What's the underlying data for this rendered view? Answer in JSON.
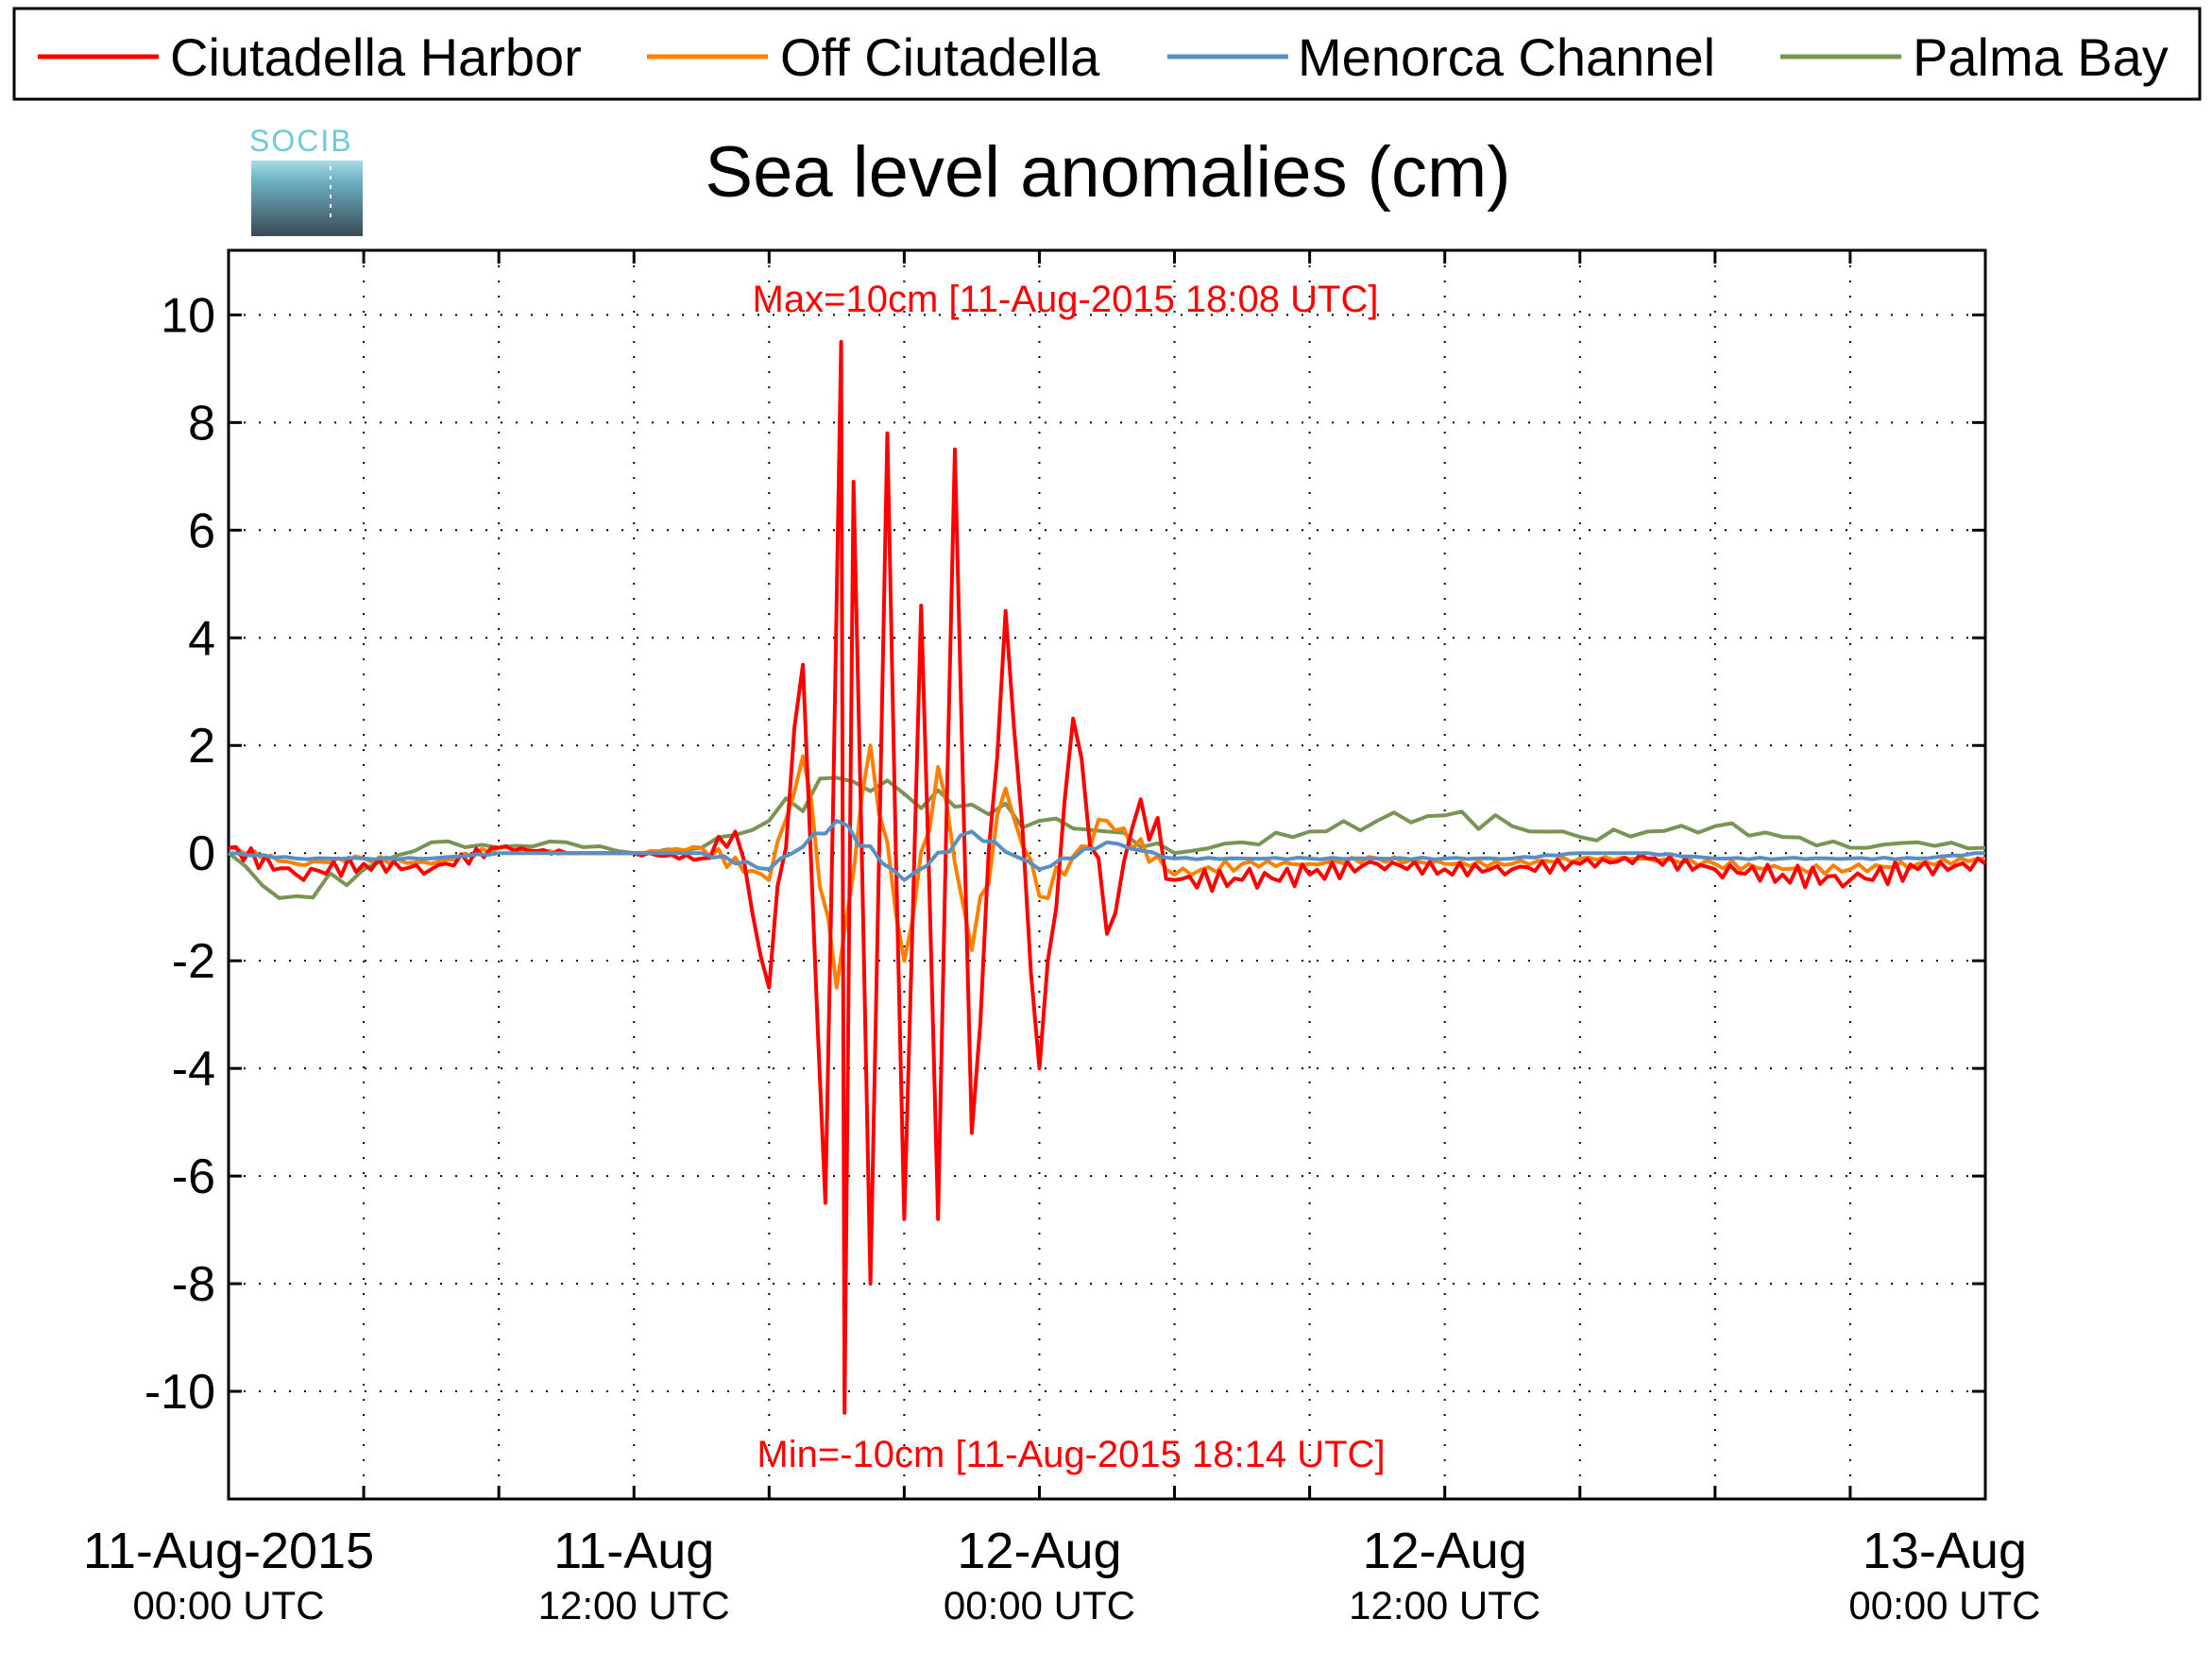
{
  "chart_data": {
    "type": "line",
    "title": "Sea level anomalies (cm)",
    "xlabel": "",
    "ylabel": "",
    "ylim": [
      -12,
      11.2
    ],
    "xlim": [
      "2015-08-11T00:00Z",
      "2015-08-13T04:00Z"
    ],
    "y_ticks": [
      "10",
      "8",
      "6",
      "4",
      "2",
      "0",
      "-2",
      "-4",
      "-6",
      "-8",
      "-10"
    ],
    "y_tick_values": [
      10,
      8,
      6,
      4,
      2,
      0,
      -2,
      -4,
      -6,
      -8,
      -10
    ],
    "x_ticks": [
      {
        "line1": "11-Aug-2015",
        "line2": "00:00 UTC",
        "x": "2015-08-11T00:00Z"
      },
      {
        "line1": "11-Aug",
        "line2": "12:00 UTC",
        "x": "2015-08-11T12:00Z"
      },
      {
        "line1": "12-Aug",
        "line2": "00:00 UTC",
        "x": "2015-08-12T00:00Z"
      },
      {
        "line1": "12-Aug",
        "line2": "12:00 UTC",
        "x": "2015-08-12T12:00Z"
      },
      {
        "line1": "13-Aug",
        "line2": "00:00 UTC",
        "x": "2015-08-13T00:00Z"
      }
    ],
    "grid": true,
    "legend_position": "top",
    "annotations": {
      "max": "Max=10cm [11-Aug-2015 18:08 UTC]",
      "min": "Min=-10cm [11-Aug-2015 18:14 UTC]"
    },
    "series": [
      {
        "name": "Ciutadella Harbor",
        "color": "#ff0000",
        "x": [
          "2015-08-11T00:00Z",
          "2015-08-11T02:00Z",
          "2015-08-11T04:00Z",
          "2015-08-11T06:00Z",
          "2015-08-11T08:00Z",
          "2015-08-11T10:00Z",
          "2015-08-11T12:00Z",
          "2015-08-11T14:00Z",
          "2015-08-11T15:00Z",
          "2015-08-11T16:00Z",
          "2015-08-11T17:00Z",
          "2015-08-11T17:40Z",
          "2015-08-11T18:08Z",
          "2015-08-11T18:14Z",
          "2015-08-11T18:30Z",
          "2015-08-11T19:00Z",
          "2015-08-11T19:30Z",
          "2015-08-11T20:00Z",
          "2015-08-11T20:30Z",
          "2015-08-11T21:00Z",
          "2015-08-11T21:30Z",
          "2015-08-11T22:00Z",
          "2015-08-11T23:00Z",
          "2015-08-12T00:00Z",
          "2015-08-12T01:00Z",
          "2015-08-12T02:00Z",
          "2015-08-12T03:00Z",
          "2015-08-12T04:00Z",
          "2015-08-12T06:00Z",
          "2015-08-12T08:00Z",
          "2015-08-12T10:00Z",
          "2015-08-12T12:00Z",
          "2015-08-12T14:00Z",
          "2015-08-12T16:00Z",
          "2015-08-12T18:00Z",
          "2015-08-12T20:00Z",
          "2015-08-12T22:00Z",
          "2015-08-13T00:00Z",
          "2015-08-13T02:00Z",
          "2015-08-13T04:00Z"
        ],
        "y": [
          0.1,
          -0.4,
          -0.2,
          -0.3,
          0.1,
          0.0,
          0.0,
          -0.1,
          0.4,
          -2.5,
          3.5,
          -6.5,
          9.5,
          -10.4,
          6.9,
          -8.0,
          7.8,
          -6.8,
          4.6,
          -6.8,
          7.5,
          -5.2,
          4.5,
          -4.0,
          2.5,
          -1.5,
          1.0,
          -0.5,
          -0.5,
          -0.4,
          -0.2,
          -0.3,
          -0.3,
          -0.2,
          -0.1,
          -0.3,
          -0.4,
          -0.5,
          -0.3,
          -0.2
        ]
      },
      {
        "name": "Off Ciutadella",
        "color": "#ff8000",
        "x": [
          "2015-08-11T00:00Z",
          "2015-08-11T02:00Z",
          "2015-08-11T04:00Z",
          "2015-08-11T06:00Z",
          "2015-08-11T08:00Z",
          "2015-08-11T10:00Z",
          "2015-08-11T12:00Z",
          "2015-08-11T14:00Z",
          "2015-08-11T16:00Z",
          "2015-08-11T17:00Z",
          "2015-08-11T18:00Z",
          "2015-08-11T19:00Z",
          "2015-08-11T20:00Z",
          "2015-08-11T21:00Z",
          "2015-08-11T22:00Z",
          "2015-08-11T23:00Z",
          "2015-08-12T00:00Z",
          "2015-08-12T02:00Z",
          "2015-08-12T04:00Z",
          "2015-08-12T06:00Z",
          "2015-08-12T08:00Z",
          "2015-08-12T10:00Z",
          "2015-08-12T12:00Z",
          "2015-08-12T14:00Z",
          "2015-08-12T16:00Z",
          "2015-08-12T18:00Z",
          "2015-08-12T20:00Z",
          "2015-08-12T22:00Z",
          "2015-08-13T00:00Z",
          "2015-08-13T02:00Z",
          "2015-08-13T04:00Z"
        ],
        "y": [
          0.1,
          -0.2,
          -0.1,
          -0.2,
          0.1,
          0.0,
          0.0,
          0.1,
          -0.5,
          1.8,
          -2.5,
          2.0,
          -2.0,
          1.6,
          -1.8,
          1.2,
          -0.8,
          0.6,
          -0.4,
          -0.2,
          -0.2,
          -0.1,
          -0.2,
          -0.2,
          -0.1,
          -0.1,
          -0.2,
          -0.3,
          -0.3,
          -0.2,
          -0.1
        ]
      },
      {
        "name": "Menorca Channel",
        "color": "#5b8fc1",
        "x": [
          "2015-08-11T00:00Z",
          "2015-08-11T02:00Z",
          "2015-08-11T04:00Z",
          "2015-08-11T06:00Z",
          "2015-08-11T08:00Z",
          "2015-08-11T10:00Z",
          "2015-08-11T12:00Z",
          "2015-08-11T14:00Z",
          "2015-08-11T16:00Z",
          "2015-08-11T18:00Z",
          "2015-08-11T20:00Z",
          "2015-08-11T22:00Z",
          "2015-08-12T00:00Z",
          "2015-08-12T02:00Z",
          "2015-08-12T04:00Z",
          "2015-08-12T06:00Z",
          "2015-08-12T08:00Z",
          "2015-08-12T10:00Z",
          "2015-08-12T12:00Z",
          "2015-08-12T14:00Z",
          "2015-08-12T16:00Z",
          "2015-08-12T18:00Z",
          "2015-08-12T20:00Z",
          "2015-08-12T22:00Z",
          "2015-08-13T00:00Z",
          "2015-08-13T02:00Z",
          "2015-08-13T04:00Z"
        ],
        "y": [
          0.0,
          -0.1,
          -0.1,
          -0.1,
          0.0,
          0.0,
          0.0,
          0.0,
          -0.3,
          0.6,
          -0.5,
          0.4,
          -0.3,
          0.2,
          -0.1,
          -0.1,
          -0.1,
          -0.1,
          -0.1,
          -0.1,
          0.0,
          0.0,
          -0.1,
          -0.1,
          -0.1,
          -0.1,
          0.0
        ]
      },
      {
        "name": "Palma Bay",
        "color": "#7a9455",
        "x": [
          "2015-08-11T00:00Z",
          "2015-08-11T01:00Z",
          "2015-08-11T02:00Z",
          "2015-08-11T04:00Z",
          "2015-08-11T06:00Z",
          "2015-08-11T08:00Z",
          "2015-08-11T10:00Z",
          "2015-08-11T12:00Z",
          "2015-08-11T14:00Z",
          "2015-08-11T16:00Z",
          "2015-08-11T18:00Z",
          "2015-08-11T20:00Z",
          "2015-08-11T22:00Z",
          "2015-08-12T00:00Z",
          "2015-08-12T02:00Z",
          "2015-08-12T04:00Z",
          "2015-08-12T06:00Z",
          "2015-08-12T08:00Z",
          "2015-08-12T10:00Z",
          "2015-08-12T12:00Z",
          "2015-08-12T14:00Z",
          "2015-08-12T16:00Z",
          "2015-08-12T18:00Z",
          "2015-08-12T20:00Z",
          "2015-08-12T22:00Z",
          "2015-08-13T00:00Z",
          "2015-08-13T02:00Z",
          "2015-08-13T04:00Z"
        ],
        "y": [
          0.0,
          -0.6,
          -0.8,
          -0.3,
          0.2,
          0.1,
          0.2,
          0.0,
          0.1,
          0.6,
          1.4,
          1.1,
          0.9,
          0.6,
          0.4,
          0.0,
          0.2,
          0.4,
          0.6,
          0.7,
          0.5,
          0.3,
          0.4,
          0.5,
          0.3,
          0.1,
          0.2,
          0.1
        ]
      }
    ]
  },
  "logo": {
    "text": "SOCIB"
  }
}
